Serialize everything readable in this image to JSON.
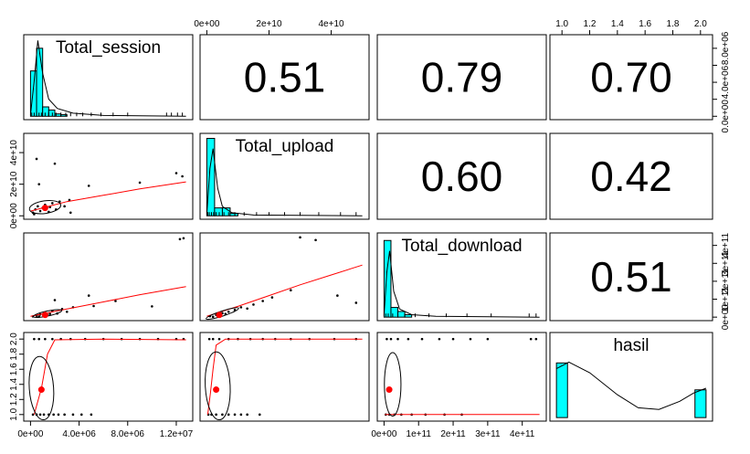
{
  "chart_data": {
    "type": "pairs-panels",
    "variables": [
      {
        "name": "Total_session",
        "ticks": [
          0,
          4000000,
          8000000,
          12000000
        ],
        "tick_labels": [
          "0e+00",
          "4.0e+06",
          "8.0e+06",
          "1.2e+07"
        ],
        "range": [
          0,
          12800000
        ],
        "histogram": {
          "bins": [
            0,
            500000,
            1000000,
            1500000,
            2000000,
            2500000,
            3000000
          ],
          "heights": [
            0.58,
            0.87,
            0.12,
            0.08,
            0.03,
            0.02
          ]
        },
        "density": [
          [
            0,
            0.02
          ],
          [
            300000,
            0.45
          ],
          [
            600000,
            0.97
          ],
          [
            1000000,
            0.55
          ],
          [
            1500000,
            0.22
          ],
          [
            2200000,
            0.1
          ],
          [
            3500000,
            0.04
          ],
          [
            6000000,
            0.01
          ],
          [
            12800000,
            0.0
          ]
        ],
        "rug": [
          100000,
          300000,
          500000,
          700000,
          900000,
          1200000,
          1500000,
          1800000,
          2100000,
          2500000,
          2900000,
          3300000,
          3800000,
          4300000,
          5000000,
          5800000,
          6800000,
          8000000,
          11200000,
          11600000,
          12100000,
          12500000
        ]
      },
      {
        "name": "Total_upload",
        "ticks": [
          0,
          20000000000,
          40000000000
        ],
        "tick_labels": [
          "0e+00",
          "2e+10",
          "4e+10"
        ],
        "range": [
          0,
          50000000000
        ],
        "histogram": {
          "bins": [
            0,
            2500000000,
            5000000000,
            7500000000,
            10000000000
          ],
          "heights": [
            0.98,
            0.1,
            0.1,
            0.03
          ]
        },
        "density": [
          [
            0,
            0.02
          ],
          [
            1000000000,
            0.6
          ],
          [
            2000000000,
            0.85
          ],
          [
            3500000000,
            0.35
          ],
          [
            5000000000,
            0.12
          ],
          [
            8000000000,
            0.04
          ],
          [
            15000000000,
            0.01
          ],
          [
            50000000000,
            0.0
          ]
        ],
        "rug": [
          300000000,
          800000000,
          1500000000,
          2200000000,
          3000000000,
          4000000000,
          5500000000,
          7000000000,
          9000000000,
          12000000000,
          16000000000,
          20000000000,
          25000000000,
          30000000000,
          36000000000,
          43000000000,
          48000000000
        ]
      },
      {
        "name": "Total_download",
        "ticks": [
          0,
          100000000000,
          200000000000,
          300000000000,
          400000000000
        ],
        "tick_labels": [
          "0e+00",
          "1e+11",
          "2e+11",
          "3e+11",
          "4e+11"
        ],
        "range": [
          0,
          450000000000
        ],
        "histogram": {
          "bins": [
            0,
            20000000000,
            40000000000,
            60000000000,
            80000000000
          ],
          "heights": [
            0.95,
            0.12,
            0.07,
            0.03
          ]
        },
        "density": [
          [
            0,
            0.02
          ],
          [
            8000000000,
            0.55
          ],
          [
            16000000000,
            0.82
          ],
          [
            28000000000,
            0.32
          ],
          [
            45000000000,
            0.1
          ],
          [
            80000000000,
            0.03
          ],
          [
            150000000000,
            0.01
          ],
          [
            450000000000,
            0.0
          ]
        ],
        "rug": [
          5000000000,
          12000000000,
          25000000000,
          40000000000,
          60000000000,
          90000000000,
          130000000000,
          180000000000,
          240000000000,
          310000000000,
          420000000000,
          440000000000
        ]
      },
      {
        "name": "hasil",
        "ticks": [
          1.0,
          1.2,
          1.4,
          1.6,
          1.8,
          2.0
        ],
        "tick_labels": [
          "1.0",
          "1.2",
          "1.4",
          "1.6",
          "1.8",
          "2.0"
        ],
        "range": [
          0.96,
          2.04
        ],
        "histogram": {
          "bins": [
            0.96,
            1.04,
            1.96,
            2.04
          ],
          "heights": [
            0.67,
            0.0,
            0.34
          ]
        },
        "density": [
          [
            0.96,
            0.6
          ],
          [
            1.05,
            0.68
          ],
          [
            1.2,
            0.55
          ],
          [
            1.4,
            0.28
          ],
          [
            1.55,
            0.12
          ],
          [
            1.7,
            0.1
          ],
          [
            1.85,
            0.2
          ],
          [
            1.95,
            0.3
          ],
          [
            2.04,
            0.36
          ]
        ],
        "rug": []
      }
    ],
    "correlations": [
      {
        "row": 0,
        "col": 1,
        "label": "0.51"
      },
      {
        "row": 0,
        "col": 2,
        "label": "0.79"
      },
      {
        "row": 0,
        "col": 3,
        "label": "0.70"
      },
      {
        "row": 1,
        "col": 2,
        "label": "0.60"
      },
      {
        "row": 1,
        "col": 3,
        "label": "0.42"
      },
      {
        "row": 2,
        "col": 3,
        "label": "0.51"
      }
    ],
    "scatter": [
      {
        "row": 1,
        "col": 0,
        "points": [
          [
            200000,
            2000000000
          ],
          [
            400000,
            4000000000
          ],
          [
            600000,
            6000000000
          ],
          [
            800000,
            3000000000
          ],
          [
            1000000,
            5000000000
          ],
          [
            1200000,
            7000000000
          ],
          [
            1500000,
            2500000000
          ],
          [
            1800000,
            8000000000
          ],
          [
            2100000,
            4000000000
          ],
          [
            2400000,
            9000000000
          ],
          [
            2800000,
            6000000000
          ],
          [
            3200000,
            10000000000
          ],
          [
            500000,
            36000000000
          ],
          [
            2000000,
            33000000000
          ],
          [
            4800000,
            19000000000
          ],
          [
            3300000,
            2000000000
          ],
          [
            9000000,
            21000000000
          ],
          [
            12500000,
            25000000000
          ],
          [
            12000000,
            27000000000
          ],
          [
            700000,
            20000000000
          ],
          [
            300000,
            1000000000
          ],
          [
            1600000,
            5500000000
          ]
        ],
        "loess": [
          [
            0,
            3000000000
          ],
          [
            1500000,
            6000000000
          ],
          [
            3000000,
            9000000000
          ],
          [
            6000000,
            13000000000
          ],
          [
            9000000,
            17000000000
          ],
          [
            12800000,
            21500000000
          ]
        ],
        "ellipse": {
          "cx": 1200000,
          "cy": 5500000000,
          "rx": 1300000,
          "ry": 4000000000,
          "rot": -8
        },
        "mean": [
          1200000,
          5000000000
        ]
      },
      {
        "row": 2,
        "col": 0,
        "points": [
          [
            200000,
            4000000000
          ],
          [
            500000,
            8000000000
          ],
          [
            800000,
            15000000000
          ],
          [
            1100000,
            25000000000
          ],
          [
            1400000,
            12000000000
          ],
          [
            1800000,
            35000000000
          ],
          [
            2200000,
            20000000000
          ],
          [
            2600000,
            45000000000
          ],
          [
            3000000,
            30000000000
          ],
          [
            3500000,
            55000000000
          ],
          [
            4800000,
            120000000000
          ],
          [
            5200000,
            62000000000
          ],
          [
            2000000,
            95000000000
          ],
          [
            7000000,
            90000000000
          ],
          [
            10000000,
            60000000000
          ],
          [
            12300000,
            435000000000
          ],
          [
            12600000,
            440000000000
          ],
          [
            700000,
            3000000000
          ],
          [
            1600000,
            18000000000
          ]
        ],
        "loess": [
          [
            0,
            5000000000
          ],
          [
            1500000,
            25000000000
          ],
          [
            3000000,
            45000000000
          ],
          [
            6000000,
            85000000000
          ],
          [
            9000000,
            125000000000
          ],
          [
            12800000,
            170000000000
          ]
        ],
        "ellipse": {
          "cx": 1400000,
          "cy": 20000000000,
          "rx": 1200000,
          "ry": 14000000000,
          "rot": -12
        },
        "mean": [
          1200000,
          12000000000
        ]
      },
      {
        "row": 2,
        "col": 1,
        "points": [
          [
            1000000000,
            5000000000
          ],
          [
            3000000000,
            12000000000
          ],
          [
            5000000000,
            22000000000
          ],
          [
            7000000000,
            30000000000
          ],
          [
            9000000000,
            40000000000
          ],
          [
            11000000000,
            55000000000
          ],
          [
            13000000000,
            48000000000
          ],
          [
            15000000000,
            70000000000
          ],
          [
            18000000000,
            90000000000
          ],
          [
            21000000000,
            110000000000
          ],
          [
            27000000000,
            150000000000
          ],
          [
            30000000000,
            445000000000
          ],
          [
            35000000000,
            430000000000
          ],
          [
            42000000000,
            120000000000
          ],
          [
            48000000000,
            80000000000
          ],
          [
            2000000000,
            2000000000
          ],
          [
            6000000000,
            18000000000
          ]
        ],
        "loess": [
          [
            0,
            5000000000
          ],
          [
            10000000000,
            60000000000
          ],
          [
            20000000000,
            120000000000
          ],
          [
            30000000000,
            180000000000
          ],
          [
            40000000000,
            235000000000
          ],
          [
            50000000000,
            290000000000
          ]
        ],
        "ellipse": {
          "cx": 5000000000,
          "cy": 20000000000,
          "rx": 5500000000,
          "ry": 14000000000,
          "rot": -18
        },
        "mean": [
          4000000000,
          12000000000
        ]
      },
      {
        "row": 3,
        "col": 0,
        "points": [
          [
            200000,
            1
          ],
          [
            500000,
            1
          ],
          [
            800000,
            1
          ],
          [
            1100000,
            1
          ],
          [
            1500000,
            1
          ],
          [
            1900000,
            1
          ],
          [
            2300000,
            1
          ],
          [
            2800000,
            1
          ],
          [
            3500000,
            1
          ],
          [
            4200000,
            1
          ],
          [
            5000000,
            1
          ],
          [
            300000,
            2
          ],
          [
            700000,
            2
          ],
          [
            1200000,
            2
          ],
          [
            1800000,
            2
          ],
          [
            2500000,
            2
          ],
          [
            3300000,
            2
          ],
          [
            4500000,
            2
          ],
          [
            6000000,
            2
          ],
          [
            7500000,
            2
          ],
          [
            9000000,
            2
          ],
          [
            10500000,
            2
          ],
          [
            12000000,
            2
          ],
          [
            12600000,
            2
          ]
        ],
        "loess": [
          [
            300000,
            1.0
          ],
          [
            900000,
            1.35
          ],
          [
            1400000,
            1.8
          ],
          [
            2000000,
            1.99
          ],
          [
            6000000,
            2.0
          ],
          [
            12800000,
            1.99
          ]
        ],
        "ellipse": {
          "cx": 900000,
          "cy": 1.35,
          "rx": 1000000,
          "ry": 0.42,
          "rot": -4
        },
        "mean": [
          900000,
          1.33
        ]
      },
      {
        "row": 3,
        "col": 1,
        "points": [
          [
            500000000,
            1
          ],
          [
            1500000000,
            1
          ],
          [
            3000000000,
            1
          ],
          [
            5000000000,
            1
          ],
          [
            7000000000,
            1
          ],
          [
            9000000000,
            1
          ],
          [
            11000000000,
            1
          ],
          [
            13000000000,
            1
          ],
          [
            17000000000,
            1
          ],
          [
            800000000,
            2
          ],
          [
            2000000000,
            2
          ],
          [
            4000000000,
            2
          ],
          [
            7000000000,
            2
          ],
          [
            10000000000,
            2
          ],
          [
            14000000000,
            2
          ],
          [
            18000000000,
            2
          ],
          [
            22000000000,
            2
          ],
          [
            27000000000,
            2
          ],
          [
            33000000000,
            2
          ],
          [
            41000000000,
            2
          ],
          [
            48000000000,
            2
          ]
        ],
        "loess": [
          [
            300000000,
            1.0
          ],
          [
            1200000000,
            1.3
          ],
          [
            2000000000,
            1.6
          ],
          [
            3000000000,
            1.92
          ],
          [
            6000000000,
            2.0
          ],
          [
            50000000000,
            2.0
          ]
        ],
        "ellipse": {
          "cx": 3500000000,
          "cy": 1.38,
          "rx": 4000000000,
          "ry": 0.45,
          "rot": -3
        },
        "mean": [
          3000000000,
          1.33
        ]
      },
      {
        "row": 3,
        "col": 2,
        "points": [
          [
            5000000000,
            1
          ],
          [
            15000000000,
            1
          ],
          [
            30000000000,
            1
          ],
          [
            50000000000,
            1
          ],
          [
            80000000000,
            1
          ],
          [
            120000000000,
            1
          ],
          [
            175000000000,
            1
          ],
          [
            225000000000,
            1
          ],
          [
            8000000000,
            2
          ],
          [
            20000000000,
            2
          ],
          [
            40000000000,
            2
          ],
          [
            70000000000,
            2
          ],
          [
            110000000000,
            2
          ],
          [
            160000000000,
            2
          ],
          [
            200000000000,
            2
          ],
          [
            250000000000,
            2
          ],
          [
            300000000000,
            2
          ],
          [
            425000000000,
            2
          ],
          [
            440000000000,
            2
          ]
        ],
        "loess": [
          [
            2000000000,
            1.0
          ],
          [
            20000000000,
            1.0
          ],
          [
            100000000000,
            1.0
          ],
          [
            250000000000,
            1.0
          ],
          [
            450000000000,
            1.0
          ]
        ],
        "ellipse": {
          "cx": 25000000000,
          "cy": 1.4,
          "rx": 24000000000,
          "ry": 0.42,
          "rot": 0
        },
        "mean": [
          15000000000,
          1.33
        ]
      }
    ],
    "colors": {
      "hist_fill": "#00ffff",
      "fit_line": "#ff0000",
      "mean_point": "#ff0000",
      "points": "#000000"
    }
  }
}
